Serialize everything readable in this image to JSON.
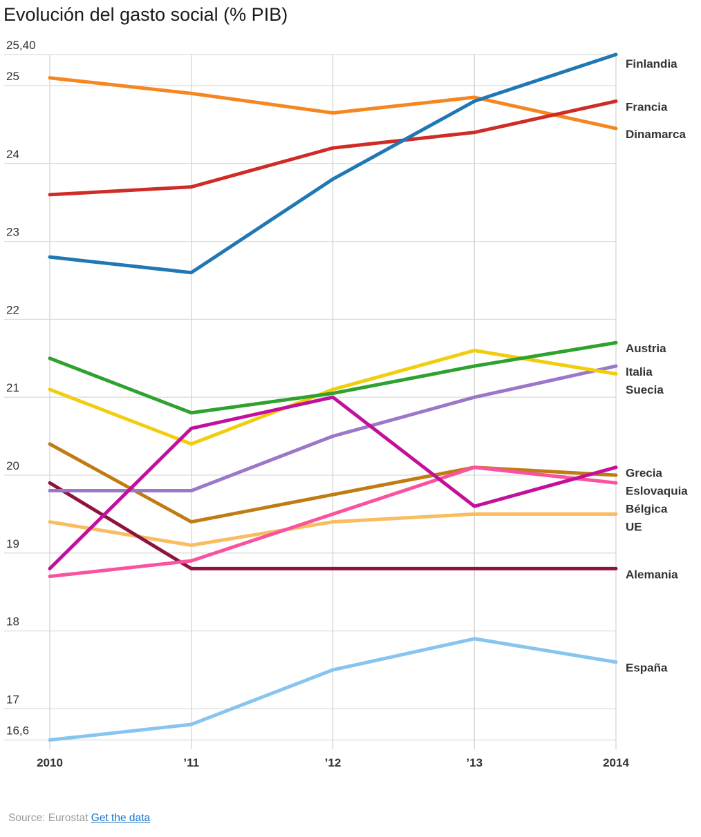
{
  "chart_data": {
    "type": "line",
    "title": "Evolución del gasto social (% PIB)",
    "x": [
      2010,
      2011,
      2012,
      2013,
      2014
    ],
    "xticks": [
      {
        "year": 2010,
        "label": "2010"
      },
      {
        "year": 2011,
        "label": "’11"
      },
      {
        "year": 2012,
        "label": "’12"
      },
      {
        "year": 2013,
        "label": "’13"
      },
      {
        "year": 2014,
        "label": "2014"
      }
    ],
    "yticks": [
      {
        "value": 25.4,
        "label": "25,40"
      },
      {
        "value": 25,
        "label": "25"
      },
      {
        "value": 24,
        "label": "24"
      },
      {
        "value": 23,
        "label": "23"
      },
      {
        "value": 22,
        "label": "22"
      },
      {
        "value": 21,
        "label": "21"
      },
      {
        "value": 20,
        "label": "20"
      },
      {
        "value": 19,
        "label": "19"
      },
      {
        "value": 18,
        "label": "18"
      },
      {
        "value": 17,
        "label": "17"
      },
      {
        "value": 16.6,
        "label": "16,6"
      }
    ],
    "ylim": [
      16.6,
      25.4
    ],
    "grid": true,
    "legend_position": "right-of-line-ends",
    "series": [
      {
        "name": "UE",
        "color": "#f9bc5e",
        "values": [
          19.4,
          19.1,
          19.4,
          19.5,
          19.5
        ]
      },
      {
        "name": "Alemania",
        "color": "#8e1340",
        "values": [
          19.9,
          18.8,
          18.8,
          18.8,
          18.8
        ]
      },
      {
        "name": "Eslovaquia",
        "color": "#bf7c12",
        "values": [
          20.4,
          19.4,
          19.75,
          20.1,
          20.0
        ]
      },
      {
        "name": "Italia",
        "color": "#9a77c8",
        "values": [
          19.8,
          19.8,
          20.5,
          21.0,
          21.4
        ]
      },
      {
        "name": "Bélgica",
        "color": "#f9529f",
        "values": [
          18.7,
          18.9,
          19.5,
          20.1,
          19.9
        ]
      },
      {
        "name": "Suecia",
        "color": "#f2cd0e",
        "values": [
          21.1,
          20.4,
          21.1,
          21.6,
          21.3
        ]
      },
      {
        "name": "Grecia",
        "color": "#c2109c",
        "values": [
          18.8,
          20.6,
          21.0,
          19.6,
          20.1
        ]
      },
      {
        "name": "Austria",
        "color": "#2fa12e",
        "values": [
          21.5,
          20.8,
          21.05,
          21.4,
          21.7
        ]
      },
      {
        "name": "España",
        "color": "#87c4f0",
        "values": [
          16.6,
          16.8,
          17.5,
          17.9,
          17.6
        ]
      },
      {
        "name": "Dinamarca",
        "color": "#f6861f",
        "values": [
          25.1,
          24.9,
          24.65,
          24.85,
          24.45
        ]
      },
      {
        "name": "Francia",
        "color": "#cf2b27",
        "values": [
          23.6,
          23.7,
          24.2,
          24.4,
          24.8
        ]
      },
      {
        "name": "Finlandia",
        "color": "#1f77b4",
        "values": [
          22.8,
          22.6,
          23.8,
          24.8,
          25.4
        ]
      }
    ]
  },
  "footer": {
    "source_label": "Source: Eurostat",
    "link_label": "Get the data"
  }
}
